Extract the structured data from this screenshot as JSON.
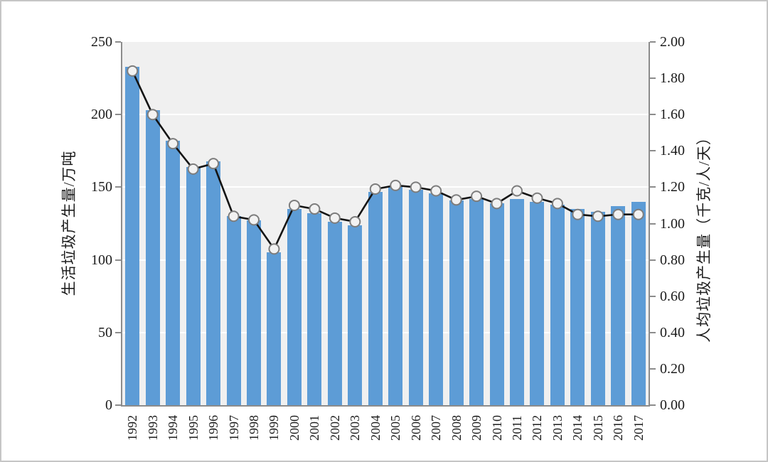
{
  "chart_data": {
    "type": "bar+line",
    "categories": [
      "1992",
      "1993",
      "1994",
      "1995",
      "1996",
      "1997",
      "1998",
      "1999",
      "2000",
      "2001",
      "2002",
      "2003",
      "2004",
      "2005",
      "2006",
      "2007",
      "2008",
      "2009",
      "2010",
      "2011",
      "2012",
      "2013",
      "2014",
      "2015",
      "2016",
      "2017"
    ],
    "series": [
      {
        "name": "生活垃圾产生量",
        "type": "bar",
        "axis": "left",
        "values": [
          233,
          203,
          182,
          164,
          168,
          130,
          127,
          105,
          135,
          132,
          126,
          124,
          147,
          150,
          148,
          146,
          141,
          142,
          139,
          142,
          140,
          138,
          135,
          133,
          137,
          140
        ]
      },
      {
        "name": "人均垃圾产生量",
        "type": "line",
        "axis": "right",
        "values": [
          1.84,
          1.6,
          1.44,
          1.3,
          1.33,
          1.04,
          1.02,
          0.86,
          1.1,
          1.08,
          1.03,
          1.01,
          1.19,
          1.21,
          1.2,
          1.18,
          1.13,
          1.15,
          1.11,
          1.18,
          1.14,
          1.11,
          1.05,
          1.04,
          1.05,
          1.05
        ]
      }
    ],
    "ylabel_left": "生活垃圾产生量/万吨",
    "ylabel_right": "人均垃圾产生量（千克/人/天）",
    "ylim_left": [
      0,
      250
    ],
    "ylim_right": [
      0,
      2.0
    ],
    "left_ticks": [
      "250",
      "200",
      "150",
      "100",
      "50",
      "0"
    ],
    "right_ticks": [
      "2.00",
      "1.80",
      "1.60",
      "1.40",
      "1.20",
      "1.00",
      "0.80",
      "0.60",
      "0.40",
      "0.20",
      "0.00"
    ],
    "gridlines": [
      50,
      100,
      150,
      200
    ],
    "legend": "none",
    "title": ""
  },
  "colors": {
    "bar": "#5d9cd6",
    "line": "#141414",
    "marker_fill": "#f2f2f2",
    "marker_stroke": "#7d7d7d",
    "plot_bg": "#f0f0f0",
    "axis": "#8c8c8c",
    "grid": "#ffffff",
    "text": "#1c1c1c"
  }
}
